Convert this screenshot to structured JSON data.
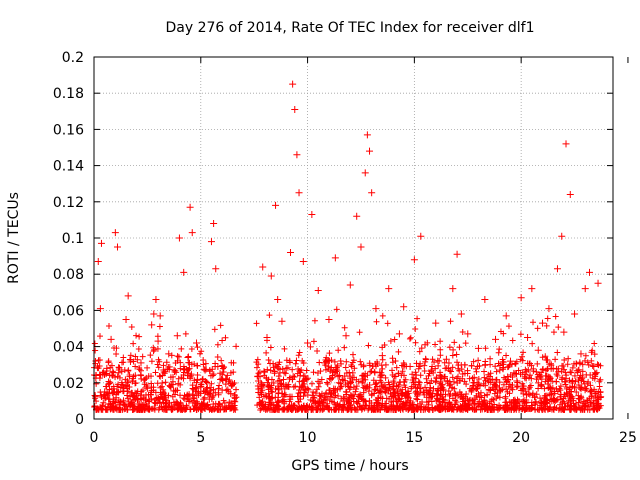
{
  "chart_data": {
    "type": "scatter",
    "title": "Day 276 of 2014, Rate Of TEC Index for receiver dlf1",
    "xlabel": "GPS time / hours",
    "ylabel": "ROTI / TECUs",
    "xlim": [
      0,
      24
    ],
    "ylim": [
      0,
      0.2
    ],
    "x_ticks": [
      0,
      5,
      10,
      15,
      20,
      25
    ],
    "x_tick_labels": [
      "0",
      "5",
      "10",
      "15",
      "20",
      "25"
    ],
    "y_ticks": [
      0,
      0.02,
      0.04,
      0.06,
      0.08,
      0.1,
      0.12,
      0.14,
      0.16,
      0.18,
      0.2
    ],
    "y_tick_labels": [
      "0",
      "0.02",
      "0.04",
      "0.06",
      "0.08",
      "0.1",
      "0.12",
      "0.14",
      "0.16",
      "0.18",
      "0.2"
    ],
    "grid": true,
    "marker": "+",
    "marker_color": "#ff0000",
    "data_gap_hours": [
      6.7,
      7.6
    ],
    "series": [
      {
        "name": "ROTI",
        "x": [
          0.05,
          0.1,
          0.2,
          0.3,
          0.35,
          0.5,
          0.6,
          0.8,
          0.9,
          1.0,
          1.1,
          1.3,
          1.5,
          1.6,
          1.8,
          2.0,
          2.2,
          2.5,
          2.7,
          2.8,
          2.9,
          3.0,
          3.1,
          3.2,
          3.3,
          3.5,
          3.7,
          3.9,
          4.0,
          4.2,
          4.4,
          4.5,
          4.6,
          4.8,
          5.0,
          5.2,
          5.4,
          5.5,
          5.6,
          5.7,
          5.8,
          6.0,
          6.2,
          6.4,
          6.6,
          7.7,
          7.9,
          8.1,
          8.3,
          8.5,
          8.6,
          8.8,
          9.0,
          9.2,
          9.3,
          9.4,
          9.5,
          9.6,
          9.8,
          10.0,
          10.2,
          10.5,
          10.8,
          11.0,
          11.3,
          11.5,
          11.8,
          12.0,
          12.3,
          12.5,
          12.7,
          12.8,
          12.9,
          13.0,
          13.2,
          13.5,
          13.8,
          14.0,
          14.3,
          14.5,
          14.8,
          15.0,
          15.3,
          15.5,
          15.8,
          16.0,
          16.3,
          16.5,
          16.8,
          17.0,
          17.2,
          17.5,
          17.8,
          18.0,
          18.3,
          18.5,
          18.8,
          19.0,
          19.3,
          19.5,
          19.8,
          20.0,
          20.3,
          20.5,
          20.8,
          21.0,
          21.3,
          21.5,
          21.7,
          21.9,
          22.0,
          22.1,
          22.3,
          22.5,
          22.8,
          23.0,
          23.2,
          23.4,
          23.6
        ],
        "y": [
          0.013,
          0.024,
          0.087,
          0.061,
          0.097,
          0.015,
          0.028,
          0.044,
          0.011,
          0.103,
          0.095,
          0.019,
          0.055,
          0.068,
          0.021,
          0.014,
          0.031,
          0.017,
          0.052,
          0.058,
          0.066,
          0.043,
          0.057,
          0.024,
          0.012,
          0.036,
          0.019,
          0.046,
          0.1,
          0.081,
          0.034,
          0.117,
          0.103,
          0.042,
          0.018,
          0.027,
          0.011,
          0.098,
          0.108,
          0.083,
          0.029,
          0.016,
          0.022,
          0.014,
          0.012,
          0.021,
          0.084,
          0.045,
          0.079,
          0.118,
          0.066,
          0.054,
          0.028,
          0.092,
          0.185,
          0.171,
          0.146,
          0.125,
          0.087,
          0.042,
          0.113,
          0.071,
          0.031,
          0.055,
          0.089,
          0.024,
          0.046,
          0.074,
          0.112,
          0.095,
          0.136,
          0.157,
          0.148,
          0.125,
          0.061,
          0.035,
          0.072,
          0.018,
          0.047,
          0.062,
          0.029,
          0.088,
          0.101,
          0.041,
          0.027,
          0.053,
          0.019,
          0.033,
          0.072,
          0.091,
          0.058,
          0.047,
          0.023,
          0.039,
          0.066,
          0.016,
          0.044,
          0.027,
          0.057,
          0.032,
          0.021,
          0.067,
          0.045,
          0.072,
          0.038,
          0.053,
          0.061,
          0.028,
          0.083,
          0.101,
          0.048,
          0.152,
          0.124,
          0.058,
          0.036,
          0.072,
          0.081,
          0.029,
          0.075
        ]
      }
    ]
  }
}
